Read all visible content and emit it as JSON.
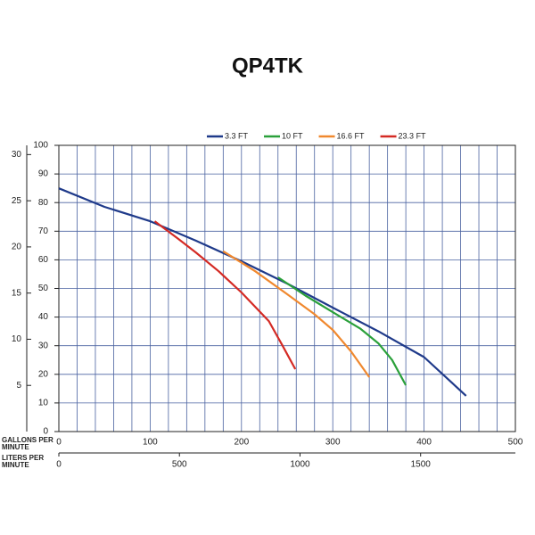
{
  "chart_data": {
    "type": "line",
    "title": "QP4TK",
    "xlabel": "GALLONS PER MINUTE",
    "x2label": "LITERS PER MINUTE",
    "xlim": [
      0,
      500
    ],
    "xticks": [
      0,
      100,
      200,
      300,
      400,
      500
    ],
    "x2lim": [
      0,
      1893
    ],
    "x2ticks": [
      0,
      500,
      1000,
      1500
    ],
    "ylim": [
      0,
      100
    ],
    "yticks": [
      0,
      10,
      20,
      30,
      40,
      50,
      60,
      70,
      80,
      90,
      100
    ],
    "y2lim": [
      0,
      31
    ],
    "y2ticks": [
      5,
      10,
      15,
      20,
      25,
      30
    ],
    "grid": true,
    "legend": "top",
    "series": [
      {
        "name": "3.3 FT",
        "color": "#1f3a8a",
        "x": [
          0,
          50,
          100,
          150,
          200,
          250,
          300,
          350,
          400,
          446
        ],
        "values": [
          85,
          78.5,
          73.5,
          66.7,
          59.5,
          51.7,
          43.3,
          35,
          26,
          12.5
        ]
      },
      {
        "name": "10 FT",
        "color": "#2aa03a",
        "x": [
          240,
          270,
          300,
          330,
          350,
          365,
          380
        ],
        "values": [
          53.9,
          47.5,
          41.7,
          36,
          30.8,
          25,
          16.2
        ]
      },
      {
        "name": "16.6 FT",
        "color": "#f0882e",
        "x": [
          180,
          215,
          250,
          280,
          300,
          320,
          340
        ],
        "values": [
          63,
          56,
          48,
          41,
          35.5,
          28,
          19
        ]
      },
      {
        "name": "23.3 FT",
        "color": "#d42a24",
        "x": [
          105,
          130,
          150,
          175,
          200,
          230,
          245,
          259
        ],
        "values": [
          73.5,
          67.5,
          62.6,
          56,
          48.6,
          38.6,
          30,
          21.8
        ]
      }
    ]
  }
}
